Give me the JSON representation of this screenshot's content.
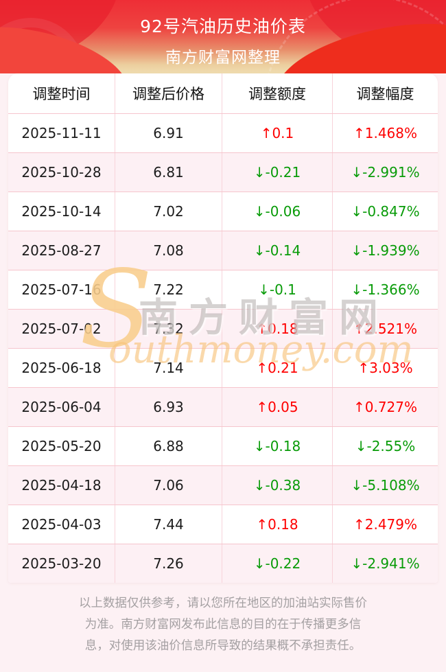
{
  "banner": {
    "title": "92号汽油历史油价表",
    "subtitle": "南方财富网整理"
  },
  "table": {
    "columns": [
      "调整时间",
      "调整后价格",
      "调整额度",
      "调整幅度"
    ],
    "rows": [
      {
        "date": "2025-11-11",
        "price": "6.91",
        "change": "↑0.1",
        "percent": "↑1.468%",
        "direction": "up"
      },
      {
        "date": "2025-10-28",
        "price": "6.81",
        "change": "↓-0.21",
        "percent": "↓-2.991%",
        "direction": "down"
      },
      {
        "date": "2025-10-14",
        "price": "7.02",
        "change": "↓-0.06",
        "percent": "↓-0.847%",
        "direction": "down"
      },
      {
        "date": "2025-08-27",
        "price": "7.08",
        "change": "↓-0.14",
        "percent": "↓-1.939%",
        "direction": "down"
      },
      {
        "date": "2025-07-16",
        "price": "7.22",
        "change": "↓-0.1",
        "percent": "↓-1.366%",
        "direction": "down"
      },
      {
        "date": "2025-07-02",
        "price": "7.32",
        "change": "↑0.18",
        "percent": "↑2.521%",
        "direction": "up"
      },
      {
        "date": "2025-06-18",
        "price": "7.14",
        "change": "↑0.21",
        "percent": "↑3.03%",
        "direction": "up"
      },
      {
        "date": "2025-06-04",
        "price": "6.93",
        "change": "↑0.05",
        "percent": "↑0.727%",
        "direction": "up"
      },
      {
        "date": "2025-05-20",
        "price": "6.88",
        "change": "↓-0.18",
        "percent": "↓-2.55%",
        "direction": "down"
      },
      {
        "date": "2025-04-18",
        "price": "7.06",
        "change": "↓-0.38",
        "percent": "↓-5.108%",
        "direction": "down"
      },
      {
        "date": "2025-04-03",
        "price": "7.44",
        "change": "↑0.18",
        "percent": "↑2.479%",
        "direction": "up"
      },
      {
        "date": "2025-03-20",
        "price": "7.26",
        "change": "↓-0.22",
        "percent": "↓-2.941%",
        "direction": "down"
      }
    ]
  },
  "watermark": {
    "initial": "S",
    "cn": "南方财富网",
    "en": "outhmoney.com"
  },
  "footer": {
    "lines": [
      "以上数据仅供参考，请以您所在地区的加油站实际售价",
      "为准。南方财富网发布此信息的目的在于传播更多信",
      "息，对使用该油价信息所导致的结果概不承担责任。"
    ]
  },
  "colors": {
    "up": "#fe0000",
    "down": "#089b08",
    "banner_red": "#ee2e36",
    "banner_tan": "#f0ddb0",
    "page_pink": "#fdf1f4",
    "row_alt_pink": "#fdf0f4",
    "divider_pink": "#f6c5cd"
  },
  "chart_data": {
    "type": "table",
    "title": "92号汽油历史油价表",
    "subtitle": "南方财富网整理",
    "columns": [
      "调整时间",
      "调整后价格",
      "调整额度",
      "调整幅度"
    ],
    "rows": [
      [
        "2025-11-11",
        6.91,
        "↑0.1",
        "↑1.468%"
      ],
      [
        "2025-10-28",
        6.81,
        "↓-0.21",
        "↓-2.991%"
      ],
      [
        "2025-10-14",
        7.02,
        "↓-0.06",
        "↓-0.847%"
      ],
      [
        "2025-08-27",
        7.08,
        "↓-0.14",
        "↓-1.939%"
      ],
      [
        "2025-07-16",
        7.22,
        "↓-0.1",
        "↓-1.366%"
      ],
      [
        "2025-07-02",
        7.32,
        "↑0.18",
        "↑2.521%"
      ],
      [
        "2025-06-18",
        7.14,
        "↑0.21",
        "↑3.03%"
      ],
      [
        "2025-06-04",
        6.93,
        "↑0.05",
        "↑0.727%"
      ],
      [
        "2025-05-20",
        6.88,
        "↓-0.18",
        "↓-2.55%"
      ],
      [
        "2025-04-18",
        7.06,
        "↓-0.38",
        "↓-5.108%"
      ],
      [
        "2025-04-03",
        7.44,
        "↑0.18",
        "↑2.479%"
      ],
      [
        "2025-03-20",
        7.26,
        "↓-0.22",
        "↓-2.941%"
      ]
    ]
  }
}
